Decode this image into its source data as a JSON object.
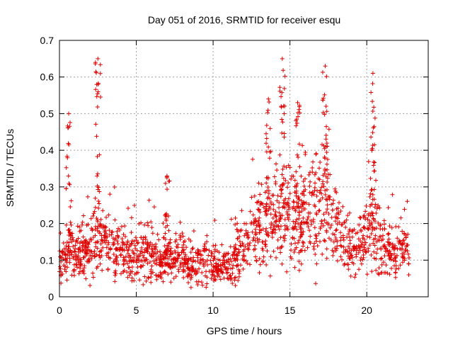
{
  "chart_data": {
    "type": "scatter",
    "title": "Day 051 of 2016, SRMTID for receiver esqu",
    "xlabel": "GPS time / hours",
    "ylabel": "SRMTID / TECUs",
    "xlim": [
      0,
      24
    ],
    "ylim": [
      0,
      0.7
    ],
    "xticks": [
      0,
      5,
      10,
      15,
      20
    ],
    "xtick_labels": [
      "0",
      "5",
      "10",
      "15",
      "20"
    ],
    "yticks": [
      0,
      0.1,
      0.2,
      0.3,
      0.4,
      0.5,
      0.6,
      0.7
    ],
    "ytick_labels": [
      "0",
      "0.1",
      "0.2",
      "0.3",
      "0.4",
      "0.5",
      "0.6",
      "0.7"
    ],
    "grid": true,
    "marker": "+",
    "color": "#e00000",
    "data_extent_hours": [
      0,
      22.8
    ],
    "series": [
      {
        "name": "SRMTID",
        "profile_x": [
          0,
          0.5,
          1,
          1.5,
          2,
          2.5,
          3,
          3.5,
          4,
          4.5,
          5,
          5.5,
          6,
          6.5,
          7,
          7.5,
          8,
          8.5,
          9,
          9.5,
          10,
          10.5,
          11,
          11.5,
          12,
          12.5,
          13,
          13.5,
          14,
          14.5,
          15,
          15.5,
          16,
          16.5,
          17,
          17.5,
          18,
          18.5,
          19,
          19.5,
          20,
          20.5,
          21,
          21.5,
          22,
          22.5,
          22.8
        ],
        "profile_mean": [
          0.09,
          0.12,
          0.11,
          0.13,
          0.14,
          0.17,
          0.15,
          0.13,
          0.12,
          0.11,
          0.11,
          0.12,
          0.11,
          0.1,
          0.1,
          0.1,
          0.1,
          0.09,
          0.09,
          0.09,
          0.09,
          0.08,
          0.08,
          0.1,
          0.13,
          0.17,
          0.19,
          0.2,
          0.21,
          0.22,
          0.21,
          0.2,
          0.22,
          0.24,
          0.26,
          0.23,
          0.17,
          0.15,
          0.13,
          0.14,
          0.17,
          0.18,
          0.13,
          0.12,
          0.12,
          0.13,
          0.13
        ],
        "peaks": [
          {
            "x": 0.6,
            "y": 0.5
          },
          {
            "x": 2.5,
            "y": 0.65
          },
          {
            "x": 7.0,
            "y": 0.33
          },
          {
            "x": 13.6,
            "y": 0.54
          },
          {
            "x": 14.5,
            "y": 0.65
          },
          {
            "x": 15.5,
            "y": 0.53
          },
          {
            "x": 17.3,
            "y": 0.63
          },
          {
            "x": 20.4,
            "y": 0.61
          }
        ]
      }
    ]
  }
}
